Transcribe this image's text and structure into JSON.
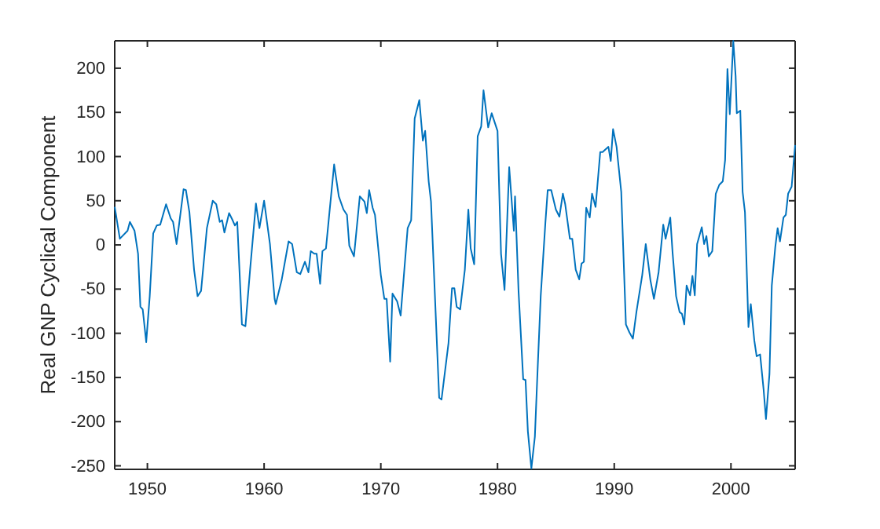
{
  "chart_data": {
    "type": "line",
    "ylabel": "Real GNP Cyclical Component",
    "xlim": [
      1947.2,
      2005.5
    ],
    "xticks": [
      1950,
      1960,
      1970,
      1980,
      1990,
      2000
    ],
    "ylim": [
      -254,
      231
    ],
    "yticks": [
      -250,
      -200,
      -150,
      -100,
      -50,
      0,
      50,
      100,
      150,
      200
    ],
    "series": [
      {
        "color": "#0072bd",
        "x": [
          1947.2,
          1947.64,
          1948.3,
          1948.5,
          1948.9,
          1949.2,
          1949.4,
          1949.6,
          1949.9,
          1950.2,
          1950.5,
          1950.8,
          1951.1,
          1951.6,
          1952.0,
          1952.2,
          1952.5,
          1953.1,
          1953.3,
          1953.6,
          1954.0,
          1954.3,
          1954.6,
          1955.1,
          1955.6,
          1955.9,
          1956.2,
          1956.4,
          1956.6,
          1957.0,
          1957.3,
          1957.5,
          1957.7,
          1958.1,
          1958.4,
          1958.8,
          1959.3,
          1959.6,
          1960.0,
          1960.5,
          1960.9,
          1961.0,
          1961.5,
          1962.1,
          1962.4,
          1962.8,
          1963.1,
          1963.5,
          1963.8,
          1964.0,
          1964.3,
          1964.5,
          1964.8,
          1965.0,
          1965.3,
          1965.6,
          1966.0,
          1966.4,
          1966.8,
          1967.1,
          1967.3,
          1967.7,
          1968.2,
          1968.6,
          1968.8,
          1969.0,
          1969.3,
          1969.5,
          1970.0,
          1970.3,
          1970.5,
          1970.8,
          1971.0,
          1971.4,
          1971.7,
          1972.3,
          1972.6,
          1972.9,
          1973.3,
          1973.6,
          1973.8,
          1974.1,
          1974.3,
          1975.0,
          1975.2,
          1975.8,
          1976.1,
          1976.3,
          1976.5,
          1976.8,
          1977.2,
          1977.5,
          1977.7,
          1978.0,
          1978.3,
          1978.6,
          1978.8,
          1979.2,
          1979.5,
          1980.0,
          1980.3,
          1980.6,
          1981.0,
          1981.4,
          1981.5,
          1981.8,
          1982.2,
          1982.4,
          1982.6,
          1982.9,
          1983.2,
          1983.4,
          1983.7,
          1984.1,
          1984.3,
          1984.6,
          1985.0,
          1985.3,
          1985.6,
          1985.8,
          1986.2,
          1986.4,
          1986.7,
          1987.0,
          1987.2,
          1987.4,
          1987.6,
          1987.9,
          1988.1,
          1988.4,
          1988.8,
          1989.0,
          1989.5,
          1989.7,
          1989.9,
          1990.2,
          1990.6,
          1991.0,
          1991.3,
          1991.6,
          1991.9,
          1992.4,
          1992.7,
          1993.1,
          1993.4,
          1993.8,
          1994.2,
          1994.4,
          1994.8,
          1995.0,
          1995.3,
          1995.6,
          1995.8,
          1996.0,
          1996.2,
          1996.5,
          1996.7,
          1996.9,
          1997.1,
          1997.5,
          1997.7,
          1997.9,
          1998.1,
          1998.4,
          1998.7,
          1999.0,
          1999.3,
          1999.5,
          1999.7,
          1999.9,
          2000.2,
          2000.4,
          2000.5,
          2000.8,
          2001.0,
          2001.2,
          2001.5,
          2001.7,
          2002.0,
          2002.2,
          2002.5,
          2002.8,
          2003.0,
          2003.3,
          2003.5,
          2003.8,
          2004.0,
          2004.2,
          2004.5,
          2004.7,
          2004.9,
          2005.2,
          2005.5
        ],
        "values": [
          43,
          7,
          16,
          26,
          16,
          -10,
          -70,
          -73,
          -110,
          -58,
          13,
          22,
          23,
          46,
          30,
          26,
          1,
          63,
          62,
          37,
          -28,
          -58,
          -52,
          19,
          50,
          46,
          26,
          28,
          14,
          36,
          28,
          22,
          26,
          -90,
          -92,
          -28,
          47,
          19,
          50,
          1,
          -61,
          -67,
          -40,
          4,
          1,
          -31,
          -33,
          -19,
          -31,
          -7,
          -10,
          -10,
          -44,
          -7,
          -4,
          37,
          91,
          55,
          40,
          34,
          -1,
          -13,
          55,
          49,
          36,
          62,
          42,
          34,
          -34,
          -61,
          -61,
          -132,
          -55,
          -64,
          -80,
          19,
          28,
          143,
          164,
          118,
          129,
          72,
          49,
          -173,
          -175,
          -111,
          -49,
          -49,
          -70,
          -73,
          -28,
          40,
          -4,
          -22,
          123,
          134,
          175,
          133,
          149,
          129,
          -10,
          -51,
          88,
          16,
          55,
          -52,
          -152,
          -153,
          -211,
          -253,
          -217,
          -152,
          -58,
          25,
          62,
          62,
          40,
          32,
          58,
          46,
          7,
          7,
          -28,
          -39,
          -21,
          -19,
          42,
          31,
          58,
          43,
          105,
          105,
          111,
          95,
          131,
          111,
          60,
          -90,
          -99,
          -106,
          -76,
          -34,
          1,
          -40,
          -61,
          -31,
          23,
          7,
          31,
          -9,
          -58,
          -76,
          -78,
          -90,
          -46,
          -57,
          -35,
          -57,
          1,
          20,
          1,
          10,
          -13,
          -7,
          58,
          68,
          72,
          96,
          199,
          148,
          231,
          191,
          149,
          152,
          60,
          37,
          -93,
          -67,
          -108,
          -126,
          -124,
          -164,
          -197,
          -146,
          -46,
          -2,
          19,
          4,
          31,
          34,
          58,
          66,
          113
        ]
      }
    ]
  }
}
